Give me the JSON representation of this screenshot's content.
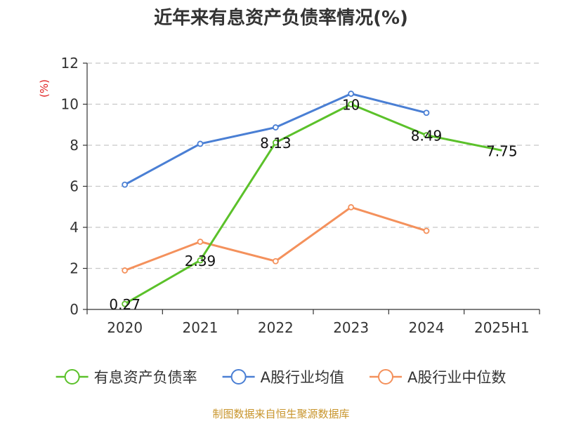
{
  "chart_data": {
    "type": "line",
    "title": "近年来有息资产负债率情况(%)",
    "ylabel": "(%)",
    "xlabel": "",
    "categories": [
      "2020",
      "2021",
      "2022",
      "2023",
      "2024",
      "2025H1"
    ],
    "ylim": [
      0,
      12
    ],
    "yticks": [
      0,
      2,
      4,
      6,
      8,
      10,
      12
    ],
    "grid": true,
    "legend_position": "bottom",
    "series": [
      {
        "name": "有息资产负债率",
        "values": [
          0.27,
          2.39,
          8.13,
          10,
          8.49,
          7.75
        ],
        "labels": [
          "0.27",
          "2.39",
          "8.13",
          "10",
          "8.49",
          "7.75"
        ],
        "color": "#5bc12a"
      },
      {
        "name": "A股行业均值",
        "values": [
          6.08,
          8.07,
          8.87,
          10.51,
          9.58,
          null
        ],
        "color": "#4a7fd4"
      },
      {
        "name": "A股行业中位数",
        "values": [
          1.9,
          3.3,
          2.35,
          4.98,
          3.83,
          null
        ],
        "color": "#f4915c"
      }
    ]
  },
  "source": "制图数据来自恒生聚源数据库"
}
